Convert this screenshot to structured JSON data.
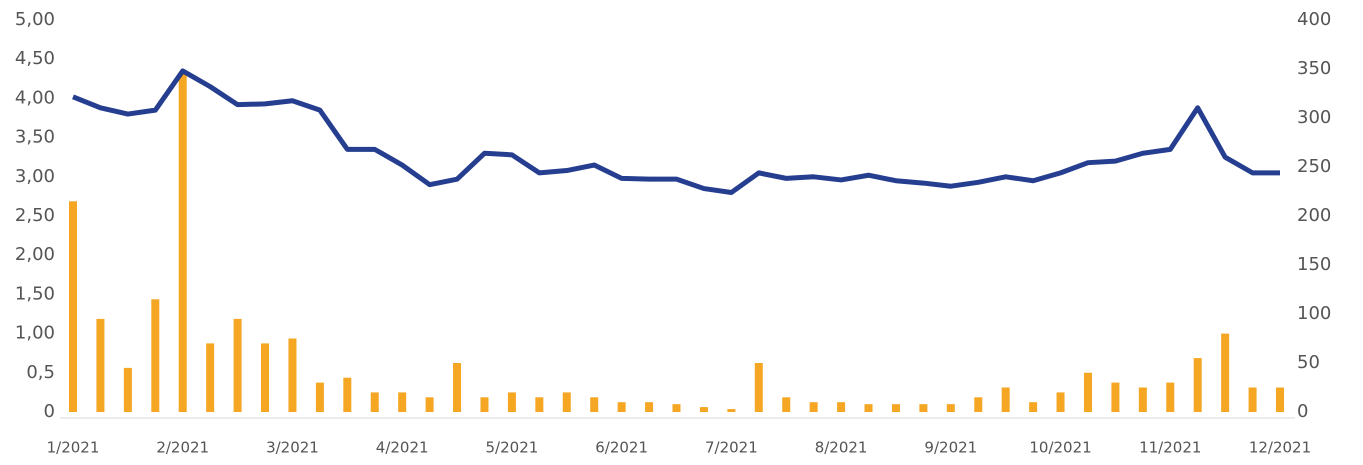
{
  "chart_data": {
    "type": "combo",
    "categories": [
      "1/2021",
      null,
      null,
      null,
      "2/2021",
      null,
      null,
      null,
      "3/2021",
      null,
      null,
      null,
      "4/2021",
      null,
      null,
      null,
      "5/2021",
      null,
      null,
      null,
      "6/2021",
      null,
      null,
      null,
      "7/2021",
      null,
      null,
      null,
      "8/2021",
      null,
      null,
      null,
      "9/2021",
      null,
      null,
      null,
      "10/2021",
      null,
      null,
      null,
      "11/2021",
      null,
      null,
      null,
      "12/2021"
    ],
    "series": [
      {
        "type": "bar",
        "axis": "y2",
        "color": "#f5a623",
        "values": [
          215,
          95,
          45,
          115,
          347,
          70,
          95,
          70,
          75,
          30,
          35,
          20,
          20,
          15,
          50,
          15,
          20,
          15,
          20,
          15,
          10,
          10,
          8,
          5,
          3,
          50,
          15,
          10,
          10,
          8,
          8,
          8,
          8,
          15,
          25,
          10,
          20,
          40,
          30,
          25,
          30,
          55,
          80,
          25,
          25
        ]
      },
      {
        "type": "line",
        "axis": "y",
        "color": "#263e8f",
        "values": [
          4.02,
          3.88,
          3.8,
          3.85,
          4.35,
          4.15,
          3.92,
          3.93,
          3.97,
          3.85,
          3.35,
          3.35,
          3.15,
          2.9,
          2.97,
          3.3,
          3.28,
          3.05,
          3.08,
          3.15,
          2.98,
          2.97,
          2.97,
          2.85,
          2.8,
          3.05,
          2.98,
          3.0,
          2.96,
          3.02,
          2.95,
          2.92,
          2.88,
          2.93,
          3.0,
          2.95,
          3.05,
          3.18,
          3.2,
          3.3,
          3.35,
          3.88,
          3.25,
          3.05,
          3.05
        ]
      }
    ],
    "ylim": [
      0,
      5
    ],
    "yticks": [
      0,
      {
        "value": 0.5,
        "label": "0,5"
      },
      {
        "value": 1,
        "label": "1,00"
      },
      {
        "value": 1.5,
        "label": "1,50"
      },
      {
        "value": 2,
        "label": "2,00"
      },
      {
        "value": 2.5,
        "label": "2,50"
      },
      {
        "value": 3,
        "label": "3,00"
      },
      {
        "value": 3.5,
        "label": "3,50"
      },
      {
        "value": 4,
        "label": "4,00"
      },
      {
        "value": 4.5,
        "label": "4,50"
      },
      {
        "value": 5,
        "label": "5,00"
      }
    ],
    "y2lim": [
      0,
      400
    ],
    "y2ticks": [
      0,
      50,
      100,
      150,
      200,
      250,
      300,
      350,
      400
    ],
    "grid": false
  }
}
